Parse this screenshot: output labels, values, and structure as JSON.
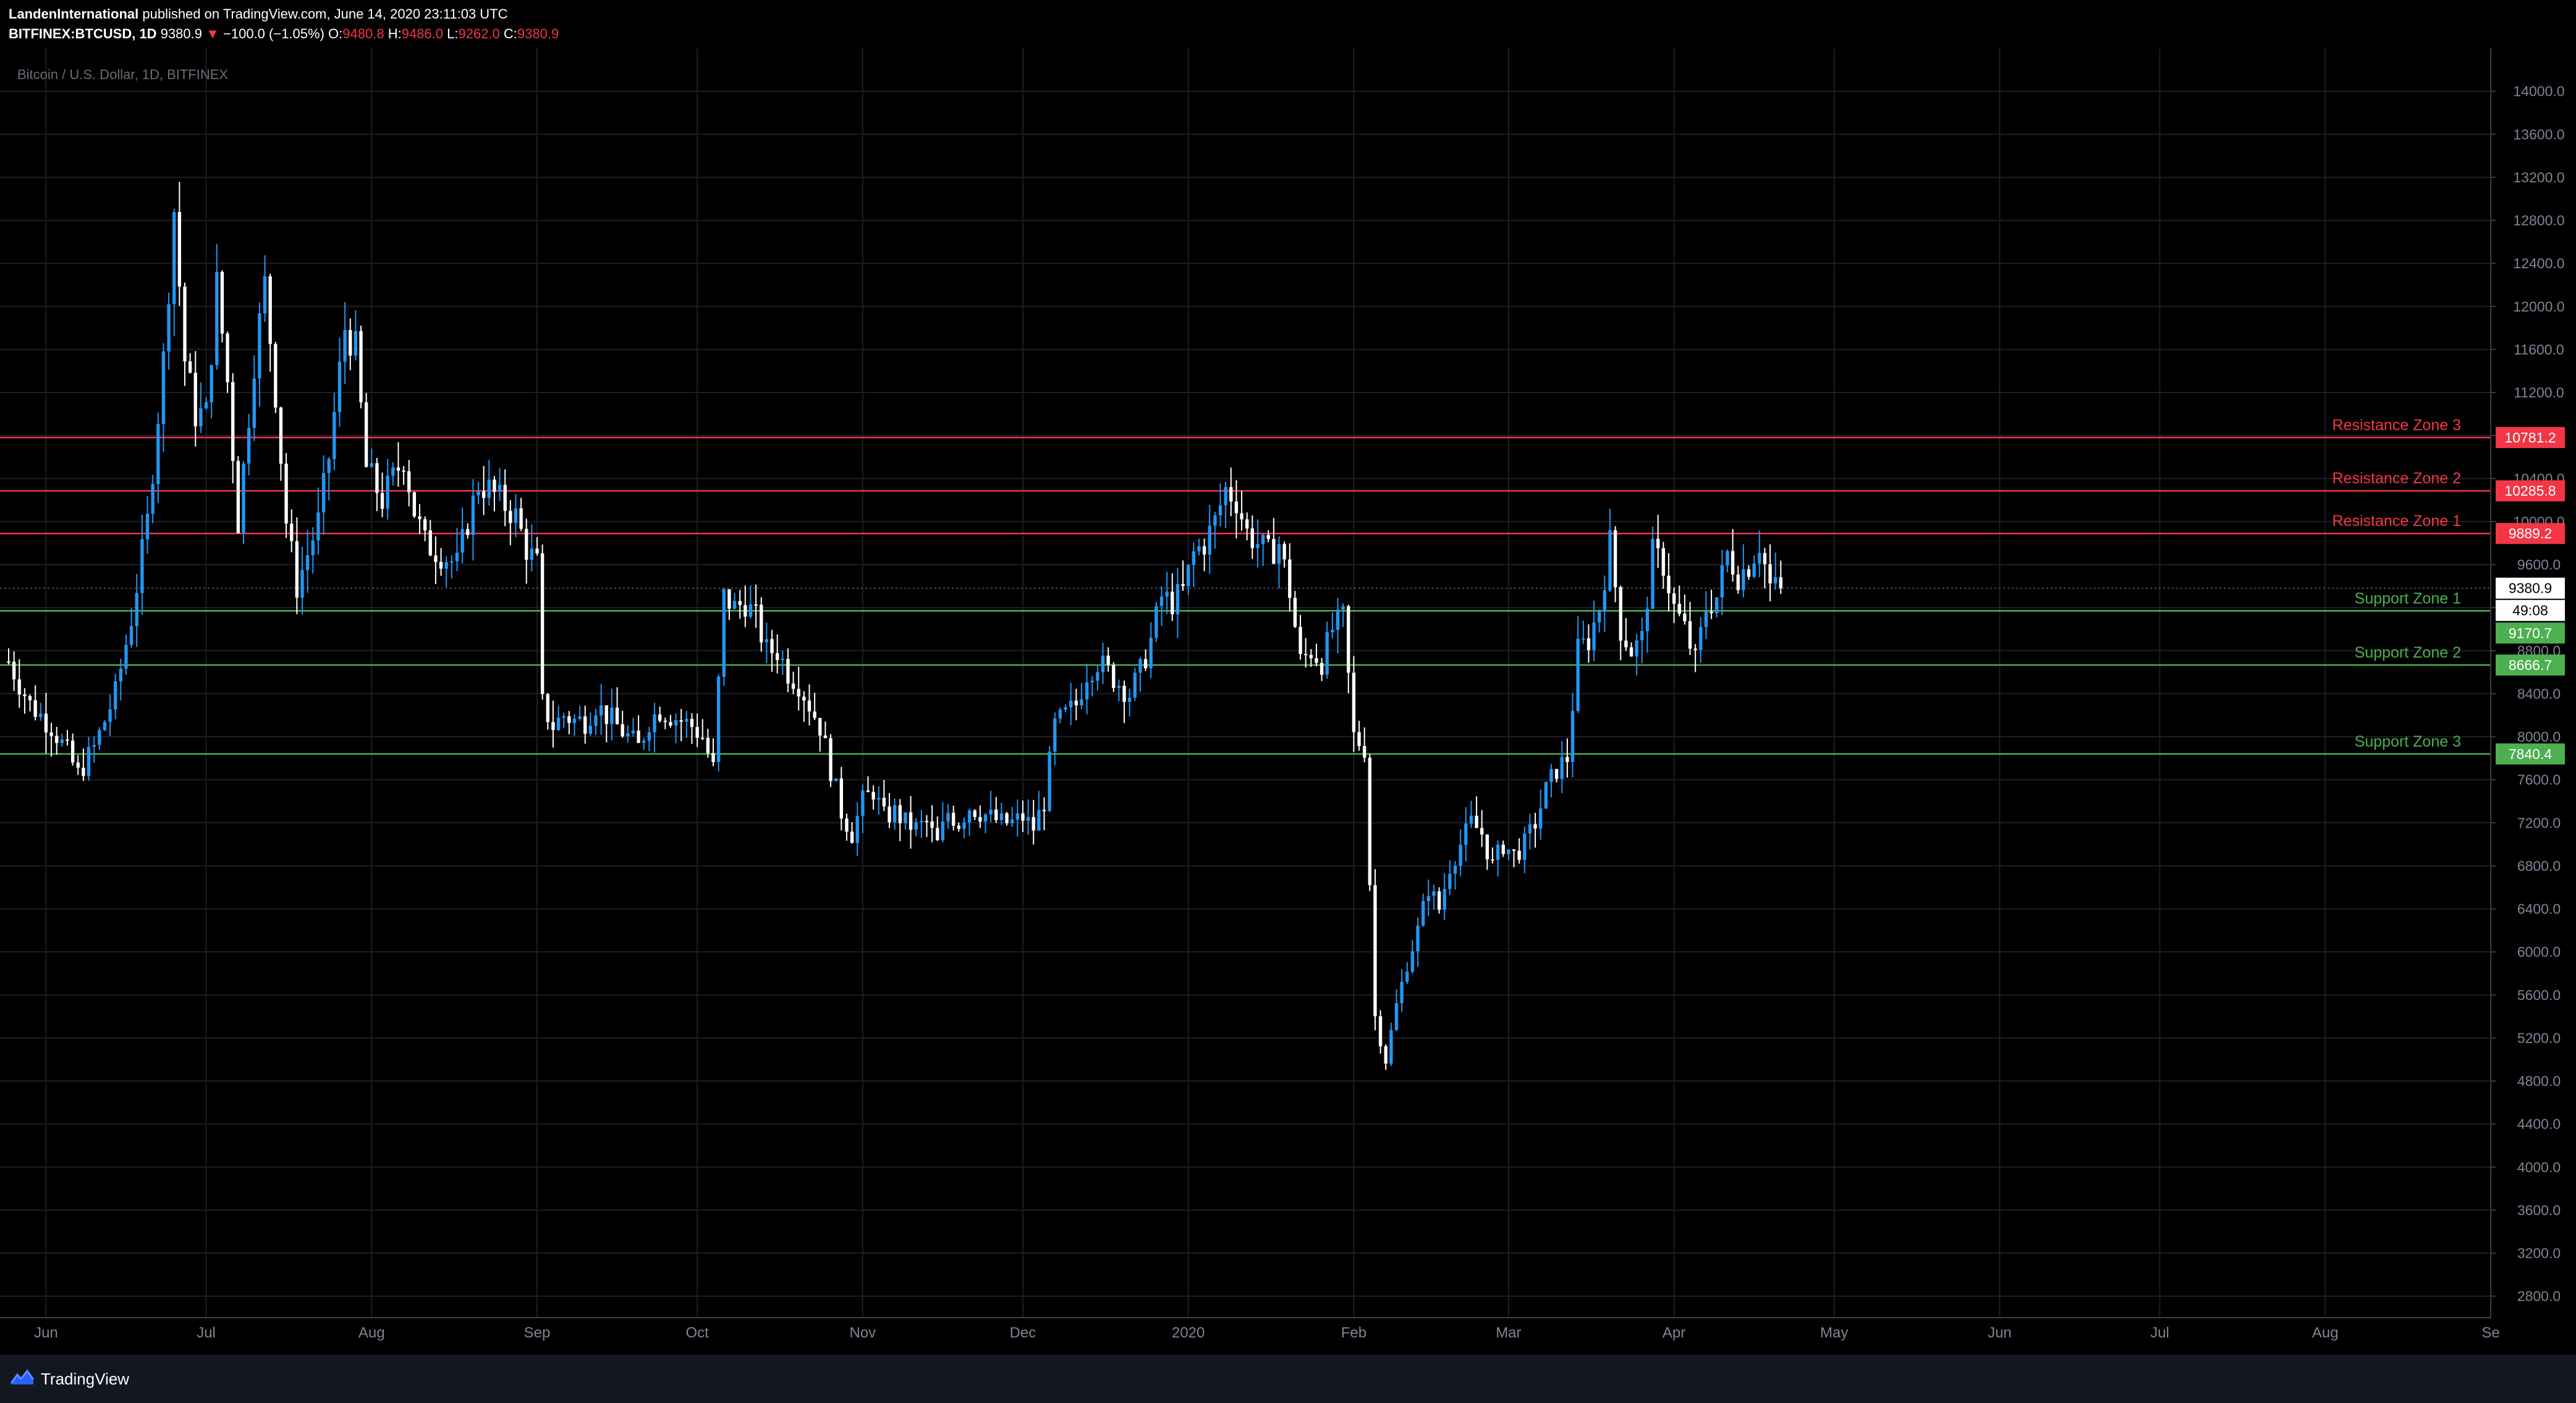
{
  "header": {
    "author": "LandenInternational",
    "published": "published on TradingView.com, June 14, 2020 23:11:03 UTC",
    "symbol": "BITFINEX:BTCUSD, 1D",
    "last": "9380.9",
    "change_arrow": "▼",
    "change": "−100.0 (−1.05%)",
    "o_label": "O:",
    "o_val": "9480.8",
    "h_label": "H:",
    "h_val": "9486.0",
    "l_label": "L:",
    "l_val": "9262.0",
    "c_label": "C:",
    "c_val": "9380.9"
  },
  "footer": {
    "brand": "TradingView",
    "logo_icon": "tradingview-logo-icon"
  },
  "colors": {
    "background": "#000000",
    "up": "#2196f3",
    "down": "#ffffff",
    "resistance": "#f23645",
    "support": "#4caf50",
    "grid": "#1c1f2a",
    "text": "#7f8495"
  },
  "chart_data": {
    "type": "candlestick",
    "title": "Bitcoin / U.S. Dollar, 1D, BITFINEX",
    "ylim": [
      2600,
      14400
    ],
    "y_ticks": [
      "2800.0",
      "3200.0",
      "3600.0",
      "4000.0",
      "4400.0",
      "4800.0",
      "5200.0",
      "5600.0",
      "6000.0",
      "6400.0",
      "6800.0",
      "7200.0",
      "7600.0",
      "8000.0",
      "8400.0",
      "8800.0",
      "9200.0",
      "9600.0",
      "10000.0",
      "10400.0",
      "10800.0",
      "11200.0",
      "11600.0",
      "12000.0",
      "12400.0",
      "12800.0",
      "13200.0",
      "13600.0",
      "14000.0"
    ],
    "x_ticks": [
      "Jun",
      "Jul",
      "Aug",
      "Sep",
      "Oct",
      "Nov",
      "Dec",
      "2020",
      "Feb",
      "Mar",
      "Apr",
      "May",
      "Jun",
      "Jul",
      "Aug",
      "Se"
    ],
    "x_tick_days": [
      7,
      37,
      68,
      99,
      129,
      160,
      190,
      221,
      252,
      281,
      312,
      342,
      373,
      403,
      434,
      465
    ],
    "x_range_days": [
      0,
      465
    ],
    "last_price": "9380.9",
    "countdown": "49:08",
    "levels": [
      {
        "name": "Resistance Zone 3",
        "value": 10781.2,
        "label": "10781.2",
        "kind": "resistance"
      },
      {
        "name": "Resistance Zone 2",
        "value": 10285.8,
        "label": "10285.8",
        "kind": "resistance"
      },
      {
        "name": "Resistance Zone 1",
        "value": 9889.2,
        "label": "9889.2",
        "kind": "resistance"
      },
      {
        "name": "Support Zone 1",
        "value": 9170.7,
        "label": "9170.7",
        "kind": "support"
      },
      {
        "name": "Support Zone 2",
        "value": 8666.7,
        "label": "8666.7",
        "kind": "support"
      },
      {
        "name": "Support Zone 3",
        "value": 7840.4,
        "label": "7840.4",
        "kind": "support"
      }
    ],
    "series": [
      {
        "name": "BTCUSD",
        "close_anchors": [
          [
            0,
            8700
          ],
          [
            4,
            8300
          ],
          [
            8,
            8100
          ],
          [
            11,
            7850
          ],
          [
            13,
            7650
          ],
          [
            16,
            7900
          ],
          [
            20,
            8400
          ],
          [
            23,
            9100
          ],
          [
            26,
            10000
          ],
          [
            29,
            11500
          ],
          [
            31,
            12900
          ],
          [
            33,
            11500
          ],
          [
            35,
            11000
          ],
          [
            37,
            11000
          ],
          [
            39,
            12200
          ],
          [
            41,
            11300
          ],
          [
            43,
            10000
          ],
          [
            46,
            11500
          ],
          [
            48,
            12200
          ],
          [
            50,
            11200
          ],
          [
            52,
            10000
          ],
          [
            54,
            9400
          ],
          [
            56,
            9700
          ],
          [
            58,
            10000
          ],
          [
            60,
            10600
          ],
          [
            63,
            11800
          ],
          [
            65,
            11600
          ],
          [
            67,
            10500
          ],
          [
            70,
            10200
          ],
          [
            72,
            10400
          ],
          [
            74,
            10600
          ],
          [
            76,
            10100
          ],
          [
            78,
            9800
          ],
          [
            81,
            9700
          ],
          [
            84,
            9600
          ],
          [
            86,
            10000
          ],
          [
            88,
            10350
          ],
          [
            90,
            10300
          ],
          [
            92,
            10200
          ],
          [
            95,
            10050
          ],
          [
            97,
            9750
          ],
          [
            99,
            9600
          ],
          [
            100,
            8300
          ],
          [
            102,
            8100
          ],
          [
            104,
            8200
          ],
          [
            106,
            8150
          ],
          [
            108,
            8150
          ],
          [
            110,
            8300
          ],
          [
            112,
            8200
          ],
          [
            114,
            8100
          ],
          [
            116,
            8000
          ],
          [
            118,
            7900
          ],
          [
            120,
            8150
          ],
          [
            122,
            8250
          ],
          [
            124,
            8200
          ],
          [
            126,
            8150
          ],
          [
            128,
            8100
          ],
          [
            130,
            8000
          ],
          [
            132,
            7700
          ],
          [
            134,
            9300
          ],
          [
            136,
            9200
          ],
          [
            138,
            9250
          ],
          [
            140,
            9100
          ],
          [
            142,
            8800
          ],
          [
            144,
            8800
          ],
          [
            146,
            8600
          ],
          [
            148,
            8500
          ],
          [
            150,
            8300
          ],
          [
            152,
            8100
          ],
          [
            154,
            7700
          ],
          [
            156,
            7300
          ],
          [
            158,
            7100
          ],
          [
            160,
            7400
          ],
          [
            162,
            7500
          ],
          [
            164,
            7250
          ],
          [
            166,
            7300
          ],
          [
            168,
            7200
          ],
          [
            170,
            7150
          ],
          [
            172,
            7200
          ],
          [
            174,
            7000
          ],
          [
            176,
            7300
          ],
          [
            178,
            7200
          ],
          [
            180,
            7350
          ],
          [
            182,
            7300
          ],
          [
            184,
            7250
          ],
          [
            186,
            7200
          ],
          [
            188,
            7200
          ],
          [
            190,
            7250
          ],
          [
            192,
            7150
          ],
          [
            194,
            7400
          ],
          [
            196,
            8100
          ],
          [
            198,
            8200
          ],
          [
            200,
            8300
          ],
          [
            202,
            8600
          ],
          [
            204,
            8700
          ],
          [
            206,
            8600
          ],
          [
            208,
            8500
          ],
          [
            210,
            8400
          ],
          [
            212,
            8600
          ],
          [
            214,
            8900
          ],
          [
            216,
            9300
          ],
          [
            218,
            9250
          ],
          [
            220,
            9350
          ],
          [
            222,
            9700
          ],
          [
            224,
            9800
          ],
          [
            226,
            10000
          ],
          [
            228,
            10300
          ],
          [
            230,
            10200
          ],
          [
            232,
            9900
          ],
          [
            234,
            9800
          ],
          [
            236,
            9700
          ],
          [
            238,
            9800
          ],
          [
            240,
            9350
          ],
          [
            242,
            8700
          ],
          [
            244,
            8800
          ],
          [
            246,
            8700
          ],
          [
            248,
            9000
          ],
          [
            250,
            9100
          ],
          [
            252,
            8000
          ],
          [
            254,
            7900
          ],
          [
            256,
            5400
          ],
          [
            258,
            5000
          ],
          [
            260,
            5500
          ],
          [
            262,
            5900
          ],
          [
            264,
            6200
          ],
          [
            266,
            6600
          ],
          [
            268,
            6400
          ],
          [
            270,
            6800
          ],
          [
            272,
            7000
          ],
          [
            274,
            7200
          ],
          [
            276,
            7100
          ],
          [
            278,
            6800
          ],
          [
            280,
            7000
          ],
          [
            282,
            6900
          ],
          [
            284,
            7000
          ],
          [
            286,
            7200
          ],
          [
            288,
            7500
          ],
          [
            290,
            7700
          ],
          [
            292,
            7800
          ],
          [
            294,
            8800
          ],
          [
            296,
            8900
          ],
          [
            298,
            9200
          ],
          [
            300,
            9800
          ],
          [
            302,
            9000
          ],
          [
            304,
            8800
          ],
          [
            306,
            8900
          ],
          [
            308,
            9700
          ],
          [
            310,
            9600
          ],
          [
            312,
            9200
          ],
          [
            314,
            9000
          ],
          [
            316,
            8700
          ],
          [
            318,
            9200
          ],
          [
            320,
            9300
          ],
          [
            322,
            9700
          ],
          [
            324,
            9500
          ],
          [
            326,
            9600
          ],
          [
            328,
            9800
          ],
          [
            330,
            9400
          ],
          [
            332,
            9380
          ]
        ]
      }
    ]
  }
}
